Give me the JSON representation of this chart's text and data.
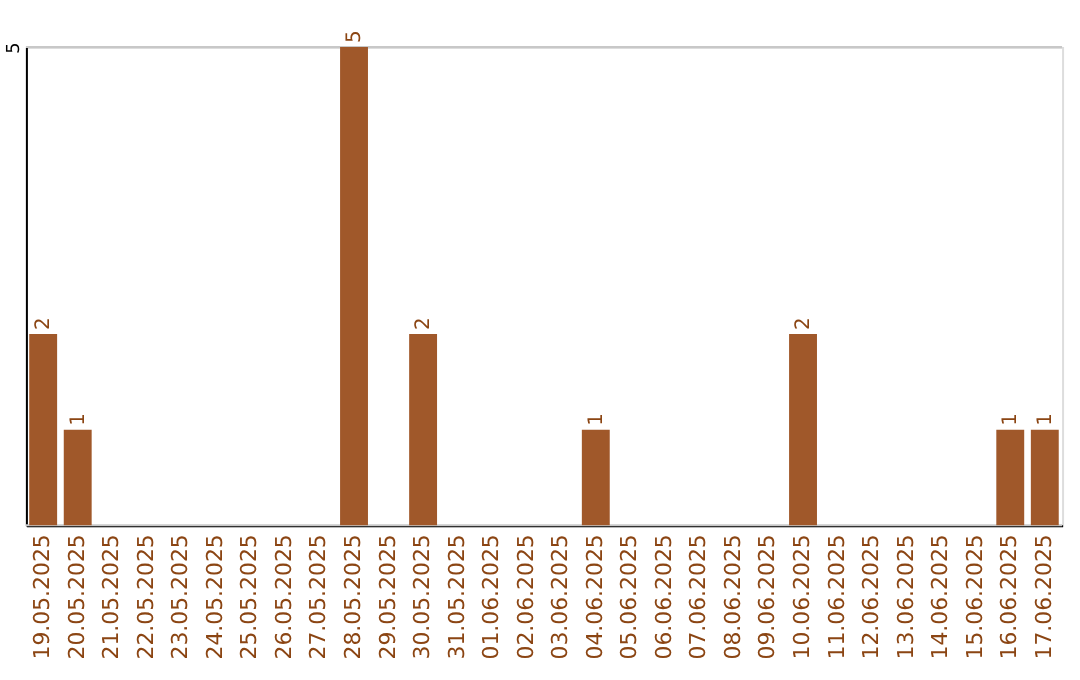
{
  "chart_data": {
    "type": "bar",
    "categories": [
      "19.05.2025",
      "20.05.2025",
      "21.05.2025",
      "22.05.2025",
      "23.05.2025",
      "24.05.2025",
      "25.05.2025",
      "26.05.2025",
      "27.05.2025",
      "28.05.2025",
      "29.05.2025",
      "30.05.2025",
      "31.05.2025",
      "01.06.2025",
      "02.06.2025",
      "03.06.2025",
      "04.06.2025",
      "05.06.2025",
      "06.06.2025",
      "07.06.2025",
      "08.06.2025",
      "09.06.2025",
      "10.06.2025",
      "11.06.2025",
      "12.06.2025",
      "13.06.2025",
      "14.06.2025",
      "15.06.2025",
      "16.06.2025",
      "17.06.2025"
    ],
    "values": [
      2,
      1,
      0,
      0,
      0,
      0,
      0,
      0,
      0,
      5,
      0,
      2,
      0,
      0,
      0,
      0,
      1,
      0,
      0,
      0,
      0,
      0,
      2,
      0,
      0,
      0,
      0,
      0,
      1,
      1
    ],
    "value_labels": [
      "2",
      "1",
      null,
      null,
      null,
      null,
      null,
      null,
      null,
      "5",
      null,
      "2",
      null,
      null,
      null,
      null,
      "1",
      null,
      null,
      null,
      null,
      null,
      "2",
      null,
      null,
      null,
      null,
      null,
      "1",
      "1"
    ],
    "color": "#a0582a",
    "ylim": [
      0,
      5
    ],
    "yticks": [
      {
        "value": 0,
        "label": null
      },
      5
    ],
    "grid": "y"
  }
}
